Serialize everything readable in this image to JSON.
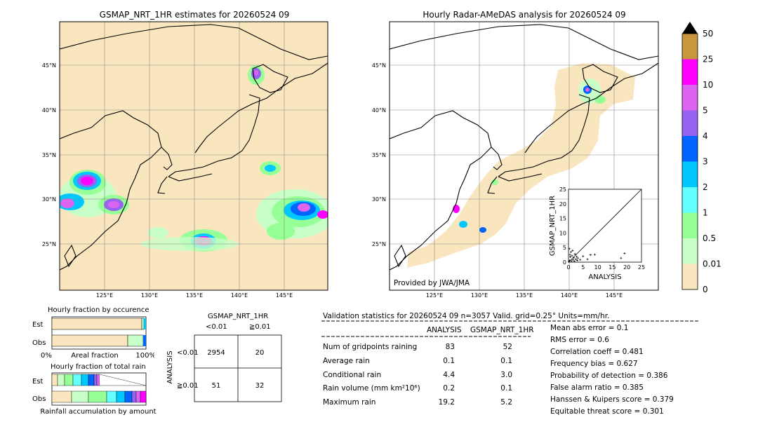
{
  "left_map": {
    "title": "GSMAP_NRT_1HR estimates for 20260524 09",
    "lat_labels": [
      "45°N",
      "40°N",
      "35°N",
      "30°N",
      "25°N"
    ],
    "lon_labels": [
      "125°E",
      "130°E",
      "135°E",
      "140°E",
      "145°E"
    ]
  },
  "right_map": {
    "title": "Hourly Radar-AMeDAS analysis for 20260524 09",
    "lat_labels": [
      "45°N",
      "40°N",
      "35°N",
      "30°N",
      "25°N"
    ],
    "lon_labels": [
      "125°E",
      "130°E",
      "135°E",
      "140°E",
      "145°E"
    ],
    "credit": "Provided by JWA/JMA"
  },
  "colorbar": {
    "labels": [
      "50",
      "25",
      "10",
      "5",
      "4",
      "3",
      "2",
      "1",
      "0.5",
      "0.01",
      "0"
    ],
    "colors": [
      "#c8963c",
      "#ff00ff",
      "#dc64f0",
      "#9664f0",
      "#0064ff",
      "#00c8ff",
      "#64ffff",
      "#96ff96",
      "#c8ffc8",
      "#fae6be"
    ]
  },
  "scatter_inset": {
    "xlabel": "ANALYSIS",
    "ylabel": "GSMAP_NRT_1HR",
    "ticks": [
      "0",
      "5",
      "10",
      "15",
      "20",
      "25"
    ]
  },
  "fraction_occurrence": {
    "title": "Hourly fraction by occurence",
    "rows": [
      "Est",
      "Obs"
    ],
    "xlabel_left": "0%",
    "xlabel_mid": "Areal fraction",
    "xlabel_right": "100%"
  },
  "fraction_rain": {
    "title": "Hourly fraction of total rain",
    "rows": [
      "Est",
      "Obs"
    ],
    "xlabel": "Rainfall accumulation by amount"
  },
  "contingency": {
    "title": "GSMAP_NRT_1HR",
    "col_labels": [
      "<0.01",
      "≧0.01"
    ],
    "row_axis": "ANALYSIS",
    "row_labels": [
      "<0.01",
      "≧0.01"
    ],
    "cells": [
      [
        "2954",
        "20"
      ],
      [
        "51",
        "32"
      ]
    ]
  },
  "validation": {
    "header": "Validation statistics for 20260524 09  n=3057 Valid. grid=0.25° Units=mm/hr.",
    "col_analysis": "ANALYSIS",
    "col_gsmap": "GSMAP_NRT_1HR",
    "rows": [
      {
        "label": "Num of gridpoints raining",
        "analysis": "83",
        "gsmap": "52"
      },
      {
        "label": "Average rain",
        "analysis": "0.1",
        "gsmap": "0.1"
      },
      {
        "label": "Conditional rain",
        "analysis": "4.4",
        "gsmap": "3.0"
      },
      {
        "label": "Rain volume (mm km²10⁶)",
        "analysis": "0.2",
        "gsmap": "0.1"
      },
      {
        "label": "Maximum rain",
        "analysis": "19.2",
        "gsmap": "5.2"
      }
    ],
    "scores": [
      "Mean abs error =    0.1",
      "RMS error =    0.6",
      "Correlation coeff =  0.481",
      "Frequency bias =  0.627",
      "Probability of detection =  0.386",
      "False alarm ratio =  0.385",
      "Hanssen & Kuipers score =  0.379",
      "Equitable threat score =  0.301"
    ]
  },
  "chart_data": {
    "type": "scatter",
    "xlabel": "ANALYSIS",
    "ylabel": "GSMAP_NRT_1HR",
    "xlim": [
      0,
      25
    ],
    "ylim": [
      0,
      25
    ],
    "points": [
      [
        0.2,
        0.1
      ],
      [
        0.4,
        0.6
      ],
      [
        0.6,
        1.8
      ],
      [
        0.8,
        3.5
      ],
      [
        1.0,
        0.4
      ],
      [
        1.2,
        2.2
      ],
      [
        1.5,
        0.8
      ],
      [
        1.8,
        1.5
      ],
      [
        2.0,
        0.3
      ],
      [
        2.2,
        2.8
      ],
      [
        2.5,
        1.0
      ],
      [
        3.0,
        0.6
      ],
      [
        3.2,
        1.4
      ],
      [
        4.0,
        0.8
      ],
      [
        5.0,
        2.0
      ],
      [
        6.5,
        1.0
      ],
      [
        7.5,
        2.5
      ],
      [
        9.0,
        2.6
      ],
      [
        18.0,
        1.4
      ],
      [
        19.2,
        3.0
      ],
      [
        0.3,
        4.6
      ],
      [
        0.5,
        2.6
      ],
      [
        1.4,
        4.0
      ],
      [
        2.8,
        1.9
      ]
    ]
  }
}
